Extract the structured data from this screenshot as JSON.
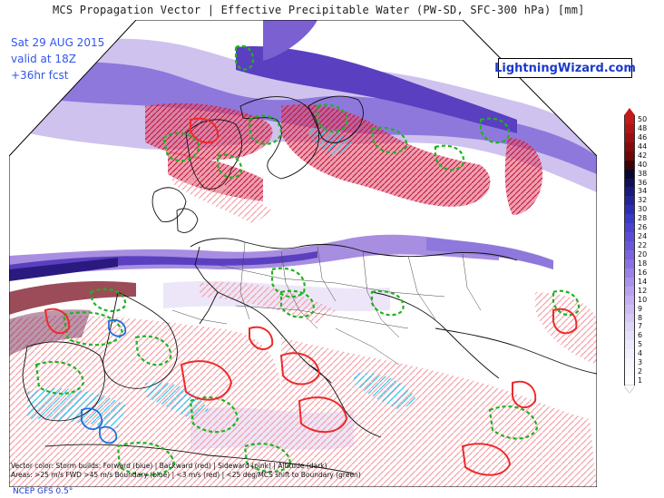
{
  "title": "MCS Propagation Vector | Effective Precipitable Water (PW-SD, SFC-300 hPa) [mm]",
  "info": {
    "date": "Sat 29 AUG 2015",
    "valid": "valid at 18Z",
    "forecast": "+36hr fcst"
  },
  "brand": "LightningWizard.com",
  "legend": {
    "line1": "Vector color: Storm builds: Forward (blue) | Backward (red) | Sideward (pink) | Altitude (dark)",
    "line2": "Areas: >25 m/s FWD >45 m/s Boundary (blue) | <3 m/s (red) | <25 deg/MCS shift to Boundary (green)"
  },
  "model": "NCEP GFS 0.5°",
  "colorbar": {
    "labels": [
      "50",
      "48",
      "46",
      "44",
      "42",
      "40",
      "38",
      "36",
      "34",
      "32",
      "30",
      "28",
      "26",
      "24",
      "22",
      "20",
      "18",
      "16",
      "14",
      "12",
      "10",
      "9",
      "8",
      "7",
      "6",
      "5",
      "4",
      "3",
      "2",
      "1"
    ],
    "colors": [
      "#c41a1a",
      "#b01515",
      "#9a1010",
      "#840c0c",
      "#6c0808",
      "#3a0404",
      "#08082e",
      "#10105a",
      "#1a1a7a",
      "#24249a",
      "#2e2eb4",
      "#3a3ac8",
      "#4a44d0",
      "#5a4ed6",
      "#6a58dc",
      "#7a64e0",
      "#8a72e4",
      "#9a82e8",
      "#aa92ec",
      "#b8a2ef",
      "#c4b0f2",
      "#ccbcf4",
      "#d6c8f6",
      "#ded4f8",
      "#e6dffa",
      "#ece8fb",
      "#f2f0fc",
      "#f6f6fd",
      "#fafafe",
      "#ffffff"
    ]
  },
  "colors": {
    "mcs_forward": "#1ec8ff",
    "mcs_backward": "#ff3030",
    "mcs_sideward": "#ff9aa0",
    "mcs_boundary_green": "#22bb22",
    "pw_deep": "#4a2fa8",
    "pw_light": "#d9cfee"
  }
}
